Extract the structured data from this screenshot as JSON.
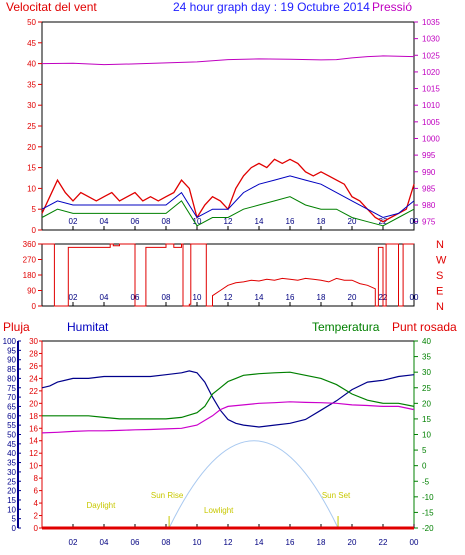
{
  "title": "24 hour graph day : 19 Octubre 2014",
  "colors": {
    "wind": "#e00000",
    "gust": "#0000c0",
    "green": "#008000",
    "pressure": "#c000c0",
    "humidity": "#00008b",
    "dew": "#cc00cc",
    "daylight": "#a9c9f0",
    "sun_label": "#c8c800",
    "frame": "#000000"
  },
  "chart_data": [
    {
      "type": "line",
      "title": "",
      "left_label": "Velocitat del vent",
      "right_label": "Pressió",
      "x_ticks": [
        "02",
        "04",
        "06",
        "08",
        "10",
        "12",
        "14",
        "16",
        "18",
        "20",
        "22",
        "00"
      ],
      "ylim_left": [
        0,
        50
      ],
      "yticks_left": [
        0,
        5,
        10,
        15,
        20,
        25,
        30,
        35,
        40,
        45,
        50
      ],
      "ylim_right": [
        972.5,
        1035
      ],
      "yticks_right": [
        975,
        980,
        985,
        990,
        995,
        1000,
        1005,
        1010,
        1015,
        1020,
        1025,
        1030,
        1035
      ],
      "series": [
        {
          "name": "Velocitat del vent",
          "axis": "left",
          "x": [
            0,
            0.5,
            1,
            1.5,
            2,
            2.5,
            3,
            3.5,
            4,
            4.5,
            5,
            5.5,
            6,
            6.5,
            7,
            7.5,
            8,
            8.5,
            9,
            9.5,
            10,
            10.5,
            11,
            11.5,
            12,
            12.5,
            13,
            13.5,
            14,
            14.5,
            15,
            15.5,
            16,
            16.5,
            17,
            17.5,
            18,
            18.5,
            19,
            19.5,
            20,
            20.5,
            21,
            21.5,
            22,
            22.5,
            23,
            23.5,
            24
          ],
          "values": [
            4,
            8,
            12,
            9,
            7,
            9,
            8,
            7,
            8,
            9,
            7,
            8,
            9,
            7,
            8,
            7,
            8,
            9,
            12,
            10,
            3,
            6,
            8,
            7,
            5,
            10,
            13,
            15,
            16,
            15,
            17,
            16,
            17,
            16,
            14,
            13,
            14,
            13,
            12,
            11,
            8,
            7,
            5,
            3,
            2,
            3,
            4,
            5,
            11
          ]
        },
        {
          "name": "",
          "axis": "left",
          "x": [
            0,
            1,
            2,
            3,
            4,
            5,
            6,
            7,
            8,
            9,
            10,
            11,
            12,
            13,
            14,
            15,
            16,
            17,
            18,
            19,
            20,
            21,
            22,
            23,
            24
          ],
          "values": [
            5,
            7,
            6,
            6,
            6,
            6,
            6,
            6,
            6,
            9,
            3,
            5,
            5,
            9,
            11,
            12,
            13,
            12,
            11,
            9,
            7,
            5,
            3,
            4,
            7
          ]
        },
        {
          "name": "",
          "axis": "left",
          "x": [
            0,
            1,
            2,
            3,
            4,
            5,
            6,
            7,
            8,
            9,
            10,
            11,
            12,
            13,
            14,
            15,
            16,
            17,
            18,
            19,
            20,
            21,
            22,
            23,
            24
          ],
          "values": [
            3,
            5,
            4,
            4,
            4,
            4,
            4,
            4,
            4,
            7,
            1,
            3,
            3,
            5,
            6,
            7,
            8,
            6,
            5,
            5,
            3,
            2,
            1,
            3,
            5
          ]
        },
        {
          "name": "Pressió",
          "axis": "right",
          "x": [
            0,
            2,
            4,
            6,
            8,
            10,
            12,
            14,
            16,
            18,
            19,
            20,
            21,
            22,
            23,
            24
          ],
          "values": [
            1022.5,
            1022.6,
            1022.2,
            1022.4,
            1022.7,
            1023.0,
            1023.7,
            1023.9,
            1023.8,
            1023.6,
            1023.7,
            1024.2,
            1024.6,
            1024.8,
            1024.7,
            1024.6
          ]
        }
      ]
    },
    {
      "type": "line",
      "title": "",
      "x_ticks": [
        "02",
        "04",
        "06",
        "08",
        "10",
        "12",
        "14",
        "16",
        "18",
        "20",
        "22",
        "00"
      ],
      "ylim": [
        0,
        360
      ],
      "yticks": [
        0,
        90,
        180,
        270,
        360
      ],
      "right_labels": [
        "N",
        "W",
        "S",
        "E",
        "N"
      ],
      "series": [
        {
          "name": "",
          "x": [
            0,
            0.8,
            0.8,
            1.7,
            1.7,
            4.4,
            4.4,
            4.6,
            4.6,
            5,
            5,
            6,
            6,
            6.7,
            6.7,
            8,
            8,
            8.5,
            8.5,
            9,
            9,
            9.1,
            9.1,
            9.5,
            9.5,
            9.6,
            9.6,
            10.6,
            10.6,
            11,
            11,
            11.5,
            12,
            12.5,
            13,
            13.5,
            14,
            14.5,
            15,
            15.5,
            16,
            16.5,
            17,
            17.5,
            18,
            18.5,
            19,
            19.5,
            20,
            20.5,
            21,
            21.5,
            21.5,
            21.7,
            21.7,
            22,
            22,
            22.2,
            22.2,
            23,
            23,
            23.3,
            23.3,
            24
          ],
          "values": [
            360,
            360,
            0,
            0,
            340,
            340,
            360,
            360,
            350,
            350,
            360,
            360,
            0,
            0,
            340,
            340,
            360,
            360,
            340,
            340,
            360,
            360,
            0,
            0,
            10,
            10,
            360,
            360,
            0,
            0,
            60,
            90,
            120,
            135,
            140,
            150,
            145,
            155,
            150,
            160,
            155,
            150,
            160,
            155,
            150,
            140,
            160,
            150,
            150,
            130,
            120,
            100,
            0,
            0,
            340,
            340,
            0,
            0,
            360,
            360,
            0,
            0,
            360,
            360
          ]
        }
      ]
    },
    {
      "type": "line",
      "title": "",
      "header_labels": [
        "Pluja",
        "Humitat",
        "Temperatura",
        "Punt rosada"
      ],
      "x_ticks": [
        "02",
        "04",
        "06",
        "08",
        "10",
        "12",
        "14",
        "16",
        "18",
        "20",
        "22",
        "00"
      ],
      "ylim_pluja": [
        0,
        30
      ],
      "yticks_pluja": [
        0,
        2,
        4,
        6,
        8,
        10,
        12,
        14,
        16,
        18,
        20,
        22,
        24,
        26,
        28,
        30
      ],
      "ylim_humitat": [
        0,
        100
      ],
      "yticks_humitat": [
        0,
        5,
        10,
        15,
        20,
        25,
        30,
        35,
        40,
        45,
        50,
        55,
        60,
        65,
        70,
        75,
        80,
        85,
        90,
        95,
        100
      ],
      "ylim_temp": [
        -20,
        40
      ],
      "yticks_temp": [
        -20,
        -15,
        -10,
        -5,
        0,
        5,
        10,
        15,
        20,
        25,
        30,
        35,
        40
      ],
      "sun": {
        "sunrise_label": "Sun Rise",
        "sunset_label": "Sun Set",
        "daylight_label": "Daylight",
        "lowlight_label": "Lowlight",
        "sunrise": 8.2,
        "sunset": 19.1,
        "peak": 13.7
      },
      "series": [
        {
          "name": "Humitat",
          "axis": "humitat",
          "x": [
            0,
            0.5,
            1,
            2,
            3,
            4,
            5,
            6,
            7,
            8,
            9,
            9.5,
            10,
            10.5,
            11,
            11.5,
            12,
            12.5,
            13,
            14,
            15,
            16,
            17,
            18,
            19,
            20,
            21,
            22,
            23,
            24
          ],
          "values": [
            75,
            76,
            78,
            80,
            80,
            81,
            81,
            81,
            81,
            82,
            83,
            84,
            83,
            78,
            70,
            63,
            58,
            56,
            55,
            54,
            55,
            56,
            58,
            63,
            68,
            74,
            78,
            79,
            81,
            82
          ]
        },
        {
          "name": "Temperatura",
          "axis": "temp",
          "x": [
            0,
            1,
            2,
            3,
            4,
            5,
            6,
            7,
            8,
            9,
            10,
            10.5,
            11,
            11.5,
            12,
            12.5,
            13,
            14,
            15,
            16,
            17,
            18,
            19,
            20,
            21,
            22,
            23,
            24
          ],
          "values": [
            16,
            16,
            16,
            16,
            15.5,
            15,
            15,
            15,
            15,
            15.5,
            17,
            19,
            23,
            25,
            27,
            28,
            29,
            29.5,
            29.8,
            30,
            29,
            28,
            26,
            23,
            21,
            20,
            20,
            19
          ]
        },
        {
          "name": "Punt rosada",
          "axis": "temp",
          "x": [
            0,
            1,
            2,
            3,
            4,
            5,
            6,
            7,
            8,
            9,
            10,
            11,
            11.5,
            12,
            13,
            14,
            15,
            16,
            17,
            18,
            19,
            20,
            21,
            22,
            23,
            24
          ],
          "values": [
            10.5,
            10.7,
            11,
            11.2,
            11.2,
            11.3,
            11.5,
            11.6,
            11.8,
            12,
            13,
            16,
            18,
            19,
            19.5,
            20,
            20.2,
            20.5,
            20.3,
            20.2,
            20,
            19.5,
            19.3,
            19,
            19,
            18
          ]
        },
        {
          "name": "Pluja",
          "axis": "pluja",
          "x": [
            0,
            24
          ],
          "values": [
            0,
            0
          ]
        }
      ]
    }
  ]
}
